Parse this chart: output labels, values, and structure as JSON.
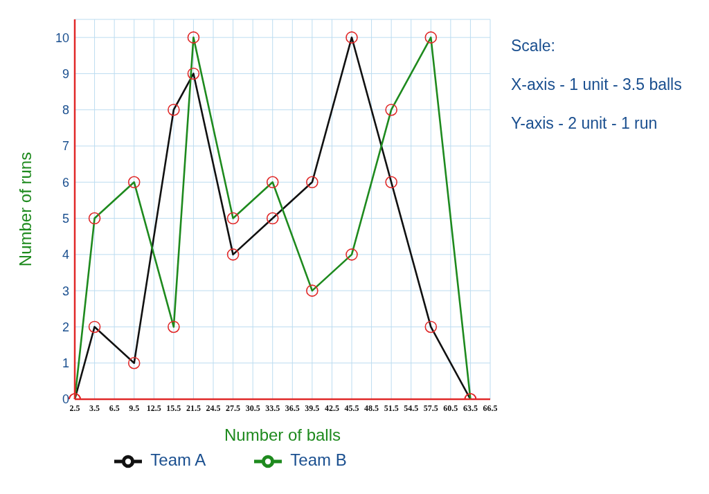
{
  "chart_data": {
    "type": "line",
    "xlabel": "Number of balls",
    "ylabel": "Number of runs",
    "annotations": [
      "Scale:",
      "X-axis - 1 unit - 3.5 balls",
      "Y-axis - 2 unit - 1 run"
    ],
    "categories": [
      "2.5",
      "3.5",
      "6.5",
      "9.5",
      "12.5",
      "15.5",
      "21.5",
      "24.5",
      "27.5",
      "30.5",
      "33.5",
      "36.5",
      "39.5",
      "42.5",
      "45.5",
      "48.5",
      "51.5",
      "54.5",
      "57.5",
      "60.5",
      "63.5",
      "66.5"
    ],
    "series": [
      {
        "name": "Team A",
        "color": "#111111",
        "values": [
          0,
          2,
          null,
          1,
          null,
          8,
          9,
          null,
          4,
          null,
          5,
          null,
          6,
          null,
          10,
          null,
          6,
          null,
          2,
          null,
          0,
          null
        ]
      },
      {
        "name": "Team B",
        "color": "#1e8a1e",
        "values": [
          0,
          5,
          null,
          6,
          null,
          2,
          10,
          null,
          5,
          null,
          6,
          null,
          3,
          null,
          4,
          null,
          8,
          null,
          10,
          null,
          0,
          null
        ]
      }
    ],
    "ylim": [
      0,
      10.5
    ],
    "yticks": [
      0,
      1,
      2,
      3,
      4,
      5,
      6,
      7,
      8,
      9,
      10
    ],
    "grid": true,
    "legend": "bottom",
    "marker": "circle"
  }
}
